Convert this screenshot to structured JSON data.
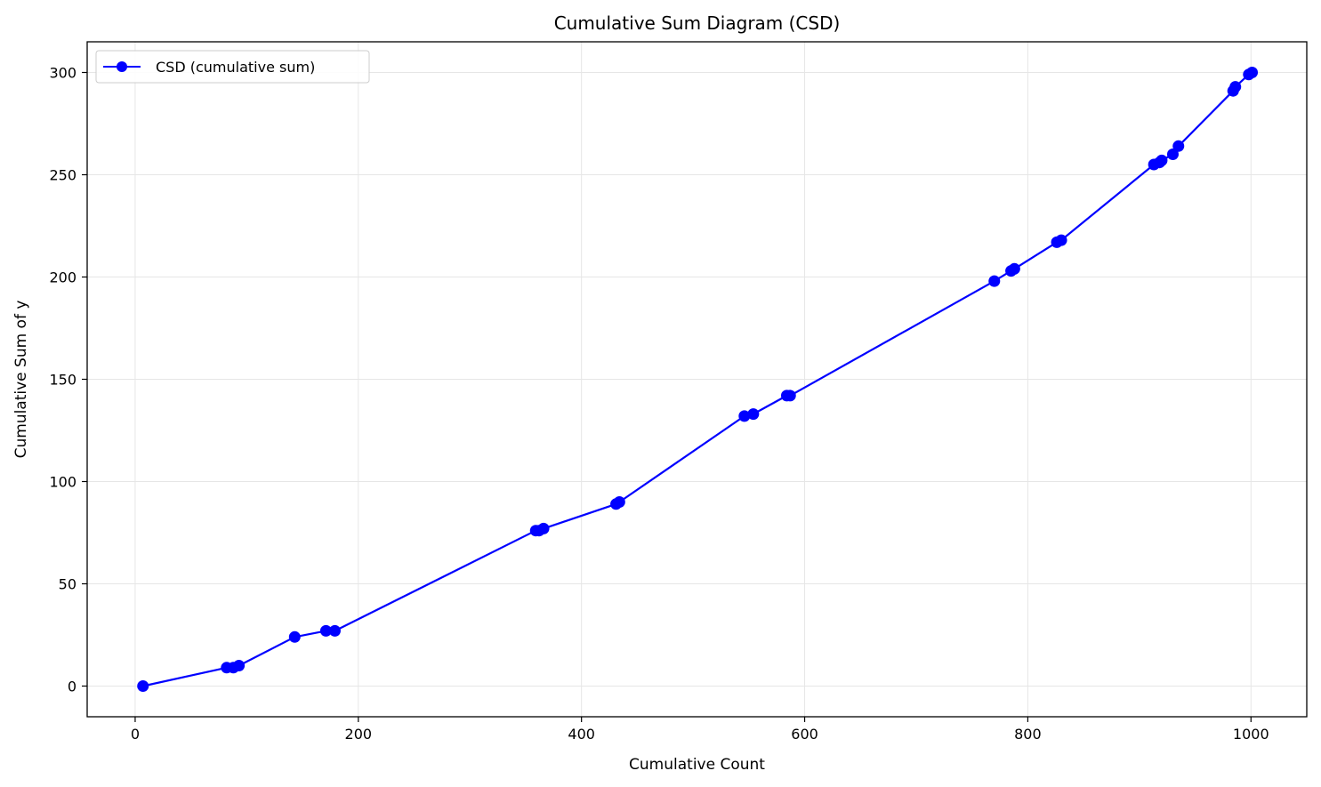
{
  "chart_data": {
    "type": "line",
    "title": "Cumulative Sum Diagram (CSD)",
    "xlabel": "Cumulative Count",
    "ylabel": "Cumulative Sum of y",
    "xlim": [
      -43,
      1050
    ],
    "ylim": [
      -15,
      315
    ],
    "xticks": [
      0,
      200,
      400,
      600,
      800,
      1000
    ],
    "yticks": [
      0,
      50,
      100,
      150,
      200,
      250,
      300
    ],
    "grid": true,
    "legend_position": "top-left",
    "series": [
      {
        "name": "CSD (cumulative sum)",
        "color": "#0000ff",
        "marker": "circle",
        "x": [
          7,
          82,
          88,
          93,
          143,
          171,
          179,
          359,
          362,
          366,
          431,
          434,
          546,
          554,
          584,
          587,
          770,
          785,
          788,
          826,
          830,
          913,
          918,
          920,
          930,
          935,
          984,
          986,
          998,
          1001
        ],
        "y": [
          0,
          9,
          9,
          10,
          24,
          27,
          27,
          76,
          76,
          77,
          89,
          90,
          132,
          133,
          142,
          142,
          198,
          203,
          204,
          217,
          218,
          255,
          256,
          257,
          260,
          264,
          291,
          293,
          299,
          300
        ]
      }
    ]
  }
}
